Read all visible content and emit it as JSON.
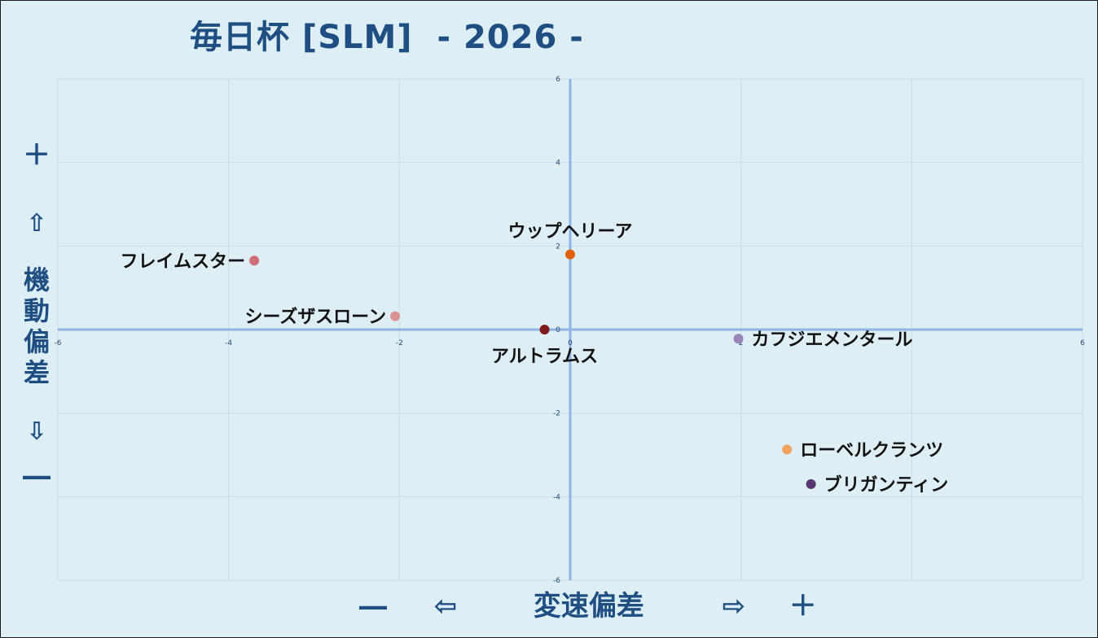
{
  "title": "毎日杯 [SLM]  - 2026 -",
  "y_axis_label": {
    "plus": "＋",
    "up_arrow": "⇧",
    "word": [
      "機",
      "動",
      "偏",
      "差"
    ],
    "down_arrow": "⇩",
    "minus": "―"
  },
  "x_axis_label": {
    "minus": "―",
    "left_arrow": "⇦",
    "word": "変速偏差",
    "right_arrow": "⇨",
    "plus": "＋"
  },
  "chart_data": {
    "type": "scatter",
    "xlim": [
      -6,
      6
    ],
    "ylim": [
      -6,
      6
    ],
    "grid": true,
    "x_ticks": [
      "-6",
      "-4",
      "-2",
      "0",
      "2",
      "6"
    ],
    "y_ticks": [
      "6",
      "4",
      "2",
      "0",
      "-2",
      "-4",
      "-6"
    ],
    "points": [
      {
        "label": "ウップヘリーア",
        "x": 0.0,
        "y": 1.8,
        "color": "#e0600f",
        "label_pos": "above"
      },
      {
        "label": "フレイムスター",
        "x": -3.7,
        "y": 1.65,
        "color": "#cf6f75",
        "label_pos": "left"
      },
      {
        "label": "シーズザスローン",
        "x": -2.05,
        "y": 0.32,
        "color": "#dc9292",
        "label_pos": "left"
      },
      {
        "label": "アルトラムス",
        "x": -0.3,
        "y": 0.0,
        "color": "#7f1b1b",
        "label_pos": "below"
      },
      {
        "label": "カフジエメンタール",
        "x": 1.97,
        "y": -0.22,
        "color": "#9a85b8",
        "label_pos": "right"
      },
      {
        "label": "ローベルクランツ",
        "x": 2.54,
        "y": -2.87,
        "color": "#f1a25e",
        "label_pos": "right"
      },
      {
        "label": "ブリガンティン",
        "x": 2.82,
        "y": -3.7,
        "color": "#55356e",
        "label_pos": "right"
      }
    ]
  }
}
